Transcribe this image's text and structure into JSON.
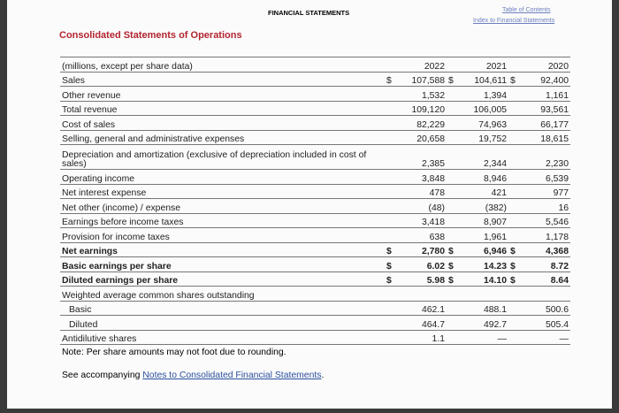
{
  "header": {
    "section": "FINANCIAL STATEMENTS",
    "links": [
      "Table of Contents",
      "Index to Financial Statements"
    ]
  },
  "title": "Consolidated Statements of Operations",
  "table": {
    "columns": [
      "(millions, except per share data)",
      "2022",
      "2021",
      "2020"
    ],
    "rows": [
      {
        "label": "Sales",
        "cells": [
          {
            "cur": "$",
            "v": "107,588"
          },
          {
            "cur": "$",
            "v": "104,611"
          },
          {
            "cur": "$",
            "v": "92,400"
          }
        ]
      },
      {
        "label": "Other revenue",
        "cells": [
          {
            "v": "1,532"
          },
          {
            "v": "1,394"
          },
          {
            "v": "1,161"
          }
        ]
      },
      {
        "label": "Total revenue",
        "cells": [
          {
            "v": "109,120"
          },
          {
            "v": "106,005"
          },
          {
            "v": "93,561"
          }
        ]
      },
      {
        "label": "Cost of sales",
        "cells": [
          {
            "v": "82,229"
          },
          {
            "v": "74,963"
          },
          {
            "v": "66,177"
          }
        ]
      },
      {
        "label": "Selling, general and administrative expenses",
        "cells": [
          {
            "v": "20,658"
          },
          {
            "v": "19,752"
          },
          {
            "v": "18,615"
          }
        ]
      },
      {
        "label": "Depreciation and amortization (exclusive of depreciation included in cost of sales)",
        "cells": [
          {
            "v": "2,385"
          },
          {
            "v": "2,344"
          },
          {
            "v": "2,230"
          }
        ]
      },
      {
        "label": "Operating income",
        "cells": [
          {
            "v": "3,848"
          },
          {
            "v": "8,946"
          },
          {
            "v": "6,539"
          }
        ]
      },
      {
        "label": "Net interest expense",
        "cells": [
          {
            "v": "478"
          },
          {
            "v": "421"
          },
          {
            "v": "977"
          }
        ]
      },
      {
        "label": "Net other (income) / expense",
        "cells": [
          {
            "v": "(48)"
          },
          {
            "v": "(382)"
          },
          {
            "v": "16"
          }
        ]
      },
      {
        "label": "Earnings before income taxes",
        "cells": [
          {
            "v": "3,418"
          },
          {
            "v": "8,907"
          },
          {
            "v": "5,546"
          }
        ]
      },
      {
        "label": "Provision for income taxes",
        "cells": [
          {
            "v": "638"
          },
          {
            "v": "1,961"
          },
          {
            "v": "1,178"
          }
        ]
      },
      {
        "label": "Net earnings",
        "bold": true,
        "cells": [
          {
            "cur": "$",
            "v": "2,780"
          },
          {
            "cur": "$",
            "v": "6,946"
          },
          {
            "cur": "$",
            "v": "4,368"
          }
        ]
      },
      {
        "label": "Basic earnings per share",
        "bold": true,
        "cells": [
          {
            "cur": "$",
            "v": "6.02"
          },
          {
            "cur": "$",
            "v": "14.23"
          },
          {
            "cur": "$",
            "v": "8.72"
          }
        ]
      },
      {
        "label": "Diluted earnings per share",
        "bold": true,
        "cells": [
          {
            "cur": "$",
            "v": "5.98"
          },
          {
            "cur": "$",
            "v": "14.10"
          },
          {
            "cur": "$",
            "v": "8.64"
          }
        ]
      },
      {
        "label": "Weighted average common shares outstanding",
        "cells": []
      },
      {
        "label": "Basic",
        "indent": true,
        "cells": [
          {
            "v": "462.1"
          },
          {
            "v": "488.1"
          },
          {
            "v": "500.6"
          }
        ]
      },
      {
        "label": "Diluted",
        "indent": true,
        "cells": [
          {
            "v": "464.7"
          },
          {
            "v": "492.7"
          },
          {
            "v": "505.4"
          }
        ]
      },
      {
        "label": "Antidilutive shares",
        "cells": [
          {
            "v": "1.1"
          },
          {
            "v": "—"
          },
          {
            "v": "—"
          }
        ]
      }
    ]
  },
  "note": "Note: Per share amounts may not foot due to rounding.",
  "footer": {
    "text": "See accompanying",
    "link": "Notes to Consolidated Financial Statements",
    "end": "."
  }
}
